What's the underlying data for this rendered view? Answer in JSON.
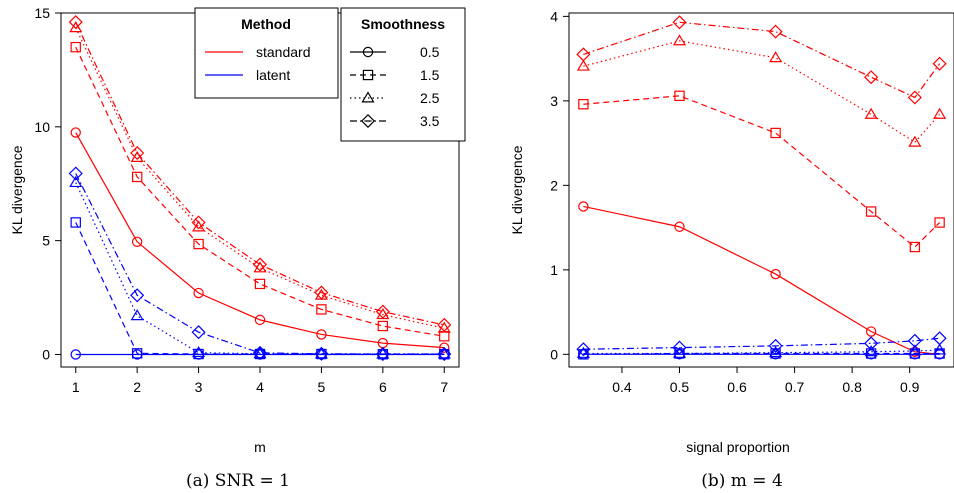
{
  "chart_data": [
    {
      "type": "line",
      "xlabel": "m",
      "ylabel": "KL divergence",
      "caption": "(a) SNR = 1",
      "x": [
        1,
        2,
        3,
        4,
        5,
        6,
        7
      ],
      "xlim": [
        0.76,
        7.24
      ],
      "ylim": [
        -0.55,
        15.0
      ],
      "xticks": [
        1,
        2,
        3,
        4,
        5,
        6,
        7
      ],
      "yticks": [
        0,
        5,
        10,
        15
      ],
      "grid": false,
      "colors": {
        "standard": "#ff0000",
        "latent": "#0000ff"
      },
      "legend_method": {
        "title": "Method",
        "entries": [
          {
            "label": "standard",
            "color": "#ff0000"
          },
          {
            "label": "latent",
            "color": "#0000ff"
          }
        ],
        "placement": "top-center"
      },
      "legend_smoothness": {
        "title": "Smoothness",
        "entries": [
          {
            "label": "0.5",
            "marker": "circle",
            "dash": "solid"
          },
          {
            "label": "1.5",
            "marker": "square",
            "dash": "dashed"
          },
          {
            "label": "2.5",
            "marker": "triangle",
            "dash": "dotted"
          },
          {
            "label": "3.5",
            "marker": "diamond",
            "dash": "dashdot"
          }
        ],
        "placement": "top-right"
      },
      "series": [
        {
          "method": "standard",
          "smoothness": "0.5",
          "values": [
            9.75,
            4.95,
            2.7,
            1.52,
            0.88,
            0.5,
            0.3
          ]
        },
        {
          "method": "standard",
          "smoothness": "1.5",
          "values": [
            13.5,
            7.8,
            4.85,
            3.1,
            1.98,
            1.25,
            0.8
          ]
        },
        {
          "method": "standard",
          "smoothness": "2.5",
          "values": [
            14.35,
            8.65,
            5.6,
            3.8,
            2.6,
            1.75,
            1.15
          ]
        },
        {
          "method": "standard",
          "smoothness": "3.5",
          "values": [
            14.6,
            8.85,
            5.8,
            3.95,
            2.72,
            1.88,
            1.3
          ]
        },
        {
          "method": "latent",
          "smoothness": "0.5",
          "values": [
            0.0,
            0.0,
            0.0,
            0.0,
            0.0,
            0.0,
            0.0
          ]
        },
        {
          "method": "latent",
          "smoothness": "1.5",
          "values": [
            5.8,
            0.05,
            0.02,
            0.02,
            0.02,
            0.01,
            0.01
          ]
        },
        {
          "method": "latent",
          "smoothness": "2.5",
          "values": [
            7.55,
            1.7,
            0.08,
            0.03,
            0.02,
            0.02,
            0.02
          ]
        },
        {
          "method": "latent",
          "smoothness": "3.5",
          "values": [
            7.95,
            2.6,
            0.98,
            0.07,
            0.03,
            0.02,
            0.02
          ]
        }
      ]
    },
    {
      "type": "line",
      "xlabel": "signal proportion",
      "ylabel": "KL divergence",
      "caption": "(b) m = 4",
      "x": [
        0.333,
        0.5,
        0.667,
        0.833,
        0.909,
        0.952
      ],
      "xlim": [
        0.308,
        0.977
      ],
      "ylim": [
        -0.15,
        4.04
      ],
      "xticks": [
        0.4,
        0.5,
        0.6,
        0.7,
        0.8,
        0.9
      ],
      "yticks": [
        0,
        1,
        2,
        3,
        4
      ],
      "grid": false,
      "series": [
        {
          "method": "standard",
          "smoothness": "0.5",
          "values": [
            1.75,
            1.51,
            0.95,
            0.27,
            0.03,
            0.0
          ]
        },
        {
          "method": "standard",
          "smoothness": "1.5",
          "values": [
            2.96,
            3.06,
            2.62,
            1.69,
            1.27,
            1.56
          ]
        },
        {
          "method": "standard",
          "smoothness": "2.5",
          "values": [
            3.41,
            3.71,
            3.51,
            2.84,
            2.51,
            2.84
          ]
        },
        {
          "method": "standard",
          "smoothness": "3.5",
          "values": [
            3.55,
            3.93,
            3.82,
            3.28,
            3.04,
            3.44
          ]
        },
        {
          "method": "latent",
          "smoothness": "0.5",
          "values": [
            0.0,
            0.0,
            0.0,
            0.0,
            0.0,
            0.0
          ]
        },
        {
          "method": "latent",
          "smoothness": "1.5",
          "values": [
            0.0,
            0.01,
            0.01,
            0.01,
            0.01,
            0.01
          ]
        },
        {
          "method": "latent",
          "smoothness": "2.5",
          "values": [
            0.01,
            0.01,
            0.02,
            0.03,
            0.04,
            0.05
          ]
        },
        {
          "method": "latent",
          "smoothness": "3.5",
          "values": [
            0.06,
            0.08,
            0.1,
            0.13,
            0.16,
            0.19
          ]
        }
      ]
    }
  ]
}
